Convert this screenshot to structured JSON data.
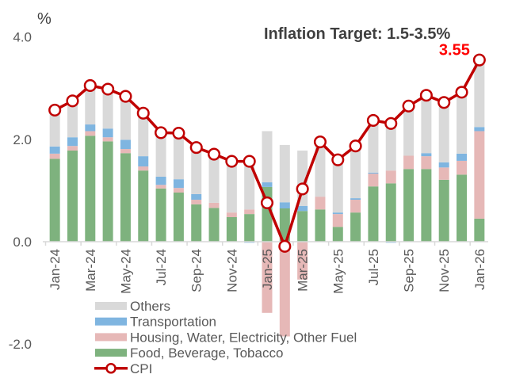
{
  "chart_data": {
    "type": "bar",
    "stacked": true,
    "title": "Inflation Target: 1.5-3.5%",
    "ylabel": "%",
    "xlabel": "",
    "ylim": [
      -2.0,
      4.0
    ],
    "yticks": [
      4.0,
      2.0,
      0.0,
      -2.0
    ],
    "ytick_labels": [
      "4.0",
      "2.0",
      "0.0",
      "-2.0"
    ],
    "grid": false,
    "legend_position": "bottom-left",
    "categories": [
      "Jan-24",
      "Feb-24",
      "Mar-24",
      "Apr-24",
      "May-24",
      "Jun-24",
      "Jul-24",
      "Aug-24",
      "Sep-24",
      "Oct-24",
      "Nov-24",
      "Dec-24",
      "Jan-25",
      "Feb-25",
      "Mar-25",
      "Apr-25",
      "May-25",
      "Jun-25",
      "Jul-25",
      "Aug-25",
      "Sep-25",
      "Oct-25",
      "Nov-25",
      "Dec-25",
      "Jan-26"
    ],
    "xtick_labels": [
      "Jan-24",
      "Mar-24",
      "May-24",
      "Jul-24",
      "Sep-24",
      "Nov-24",
      "Jan-25",
      "Mar-25",
      "May-25",
      "Jul-25",
      "Sep-25",
      "Nov-25",
      "Jan-26"
    ],
    "series": [
      {
        "name": "Food, Beverage, Tobacco",
        "kind": "bar",
        "color": "#7eb27e",
        "values": [
          1.62,
          1.78,
          2.07,
          1.96,
          1.73,
          1.39,
          1.04,
          0.96,
          0.73,
          0.66,
          0.48,
          0.54,
          1.07,
          0.65,
          0.6,
          0.63,
          0.29,
          0.57,
          1.08,
          1.14,
          1.42,
          1.42,
          1.21,
          1.31,
          0.45
        ]
      },
      {
        "name": "Housing, Water, Electricity, Other Fuel",
        "kind": "bar",
        "color": "#e6b8b7",
        "values": [
          0.1,
          0.09,
          0.09,
          0.08,
          0.08,
          0.08,
          0.07,
          0.09,
          0.09,
          0.1,
          0.09,
          0.09,
          -1.39,
          -1.85,
          -0.74,
          0.25,
          0.25,
          0.25,
          0.25,
          0.25,
          0.26,
          0.25,
          0.24,
          0.27,
          1.71
        ]
      },
      {
        "name": "Transportation",
        "kind": "bar",
        "color": "#7fb5e0",
        "values": [
          0.14,
          0.17,
          0.13,
          0.17,
          0.18,
          0.2,
          0.16,
          0.17,
          0.11,
          0.0,
          0.0,
          -0.02,
          0.09,
          0.12,
          0.1,
          0.0,
          0.03,
          0.03,
          0.02,
          -0.02,
          0.0,
          0.06,
          0.1,
          0.14,
          0.08
        ]
      },
      {
        "name": "Others",
        "kind": "bar",
        "color": "#d9d9d9",
        "values": [
          0.7,
          0.7,
          0.74,
          0.76,
          0.82,
          0.82,
          0.83,
          0.87,
          0.89,
          0.94,
          0.98,
          0.96,
          1.0,
          1.12,
          1.08,
          1.04,
          1.02,
          1.0,
          1.0,
          0.92,
          0.93,
          1.1,
          1.14,
          1.17,
          1.31
        ]
      },
      {
        "name": "CPI",
        "kind": "line",
        "color": "#c00000",
        "values": [
          2.57,
          2.75,
          3.05,
          2.98,
          2.84,
          2.51,
          2.13,
          2.12,
          1.84,
          1.71,
          1.57,
          1.57,
          0.76,
          -0.09,
          1.03,
          1.95,
          1.6,
          1.87,
          2.37,
          2.31,
          2.65,
          2.86,
          2.72,
          2.92,
          3.55
        ]
      }
    ],
    "annotations": [
      {
        "text": "3.55",
        "category": "Jan-26",
        "series": "CPI",
        "color": "#ff0000"
      }
    ],
    "legend": [
      {
        "label": "Others",
        "kind": "bar",
        "color": "#d9d9d9"
      },
      {
        "label": "Transportation",
        "kind": "bar",
        "color": "#7fb5e0"
      },
      {
        "label": "Housing, Water, Electricity, Other Fuel",
        "kind": "bar",
        "color": "#e6b8b7"
      },
      {
        "label": "Food, Beverage, Tobacco",
        "kind": "bar",
        "color": "#7eb27e"
      },
      {
        "label": "CPI",
        "kind": "line",
        "color": "#c00000"
      }
    ]
  }
}
